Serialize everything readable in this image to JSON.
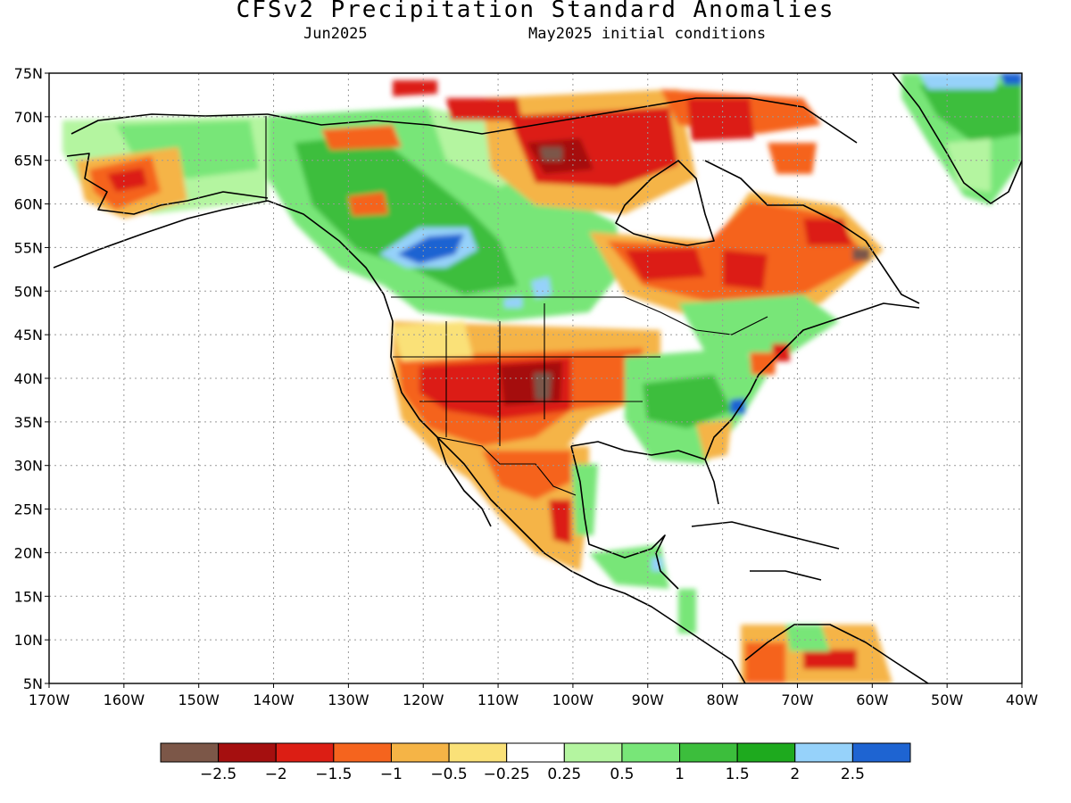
{
  "title": "CFSv2 Precipitation Standard Anomalies",
  "subtitle_left": "Jun2025",
  "subtitle_right": "May2025 initial conditions",
  "map": {
    "lat_labels": [
      "75N",
      "70N",
      "65N",
      "60N",
      "55N",
      "50N",
      "45N",
      "40N",
      "35N",
      "30N",
      "25N",
      "20N",
      "15N",
      "10N",
      "5N"
    ],
    "lon_labels": [
      "170W",
      "160W",
      "150W",
      "140W",
      "130W",
      "120W",
      "110W",
      "100W",
      "90W",
      "80W",
      "70W",
      "60W",
      "50W",
      "40W"
    ]
  },
  "legend": {
    "colors": [
      "#7c5748",
      "#a50f0f",
      "#dc1e14",
      "#f5641e",
      "#f5b446",
      "#fae178",
      "#ffffff",
      "#b4f5a0",
      "#78e678",
      "#3cbe3c",
      "#1eaa1e",
      "#96d2fa",
      "#1e64d2"
    ],
    "labels": [
      "−2.5",
      "−2",
      "−1.5",
      "−1",
      "−0.5",
      "−0.25",
      "0.25",
      "0.5",
      "1",
      "1.5",
      "2",
      "2.5"
    ]
  }
}
